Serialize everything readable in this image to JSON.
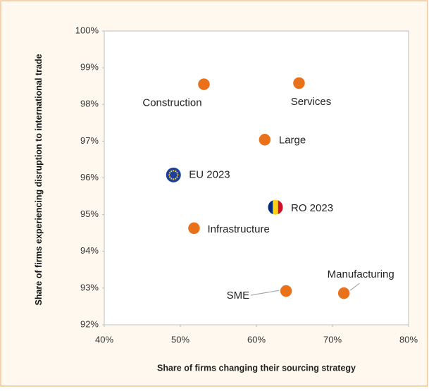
{
  "chart_data": {
    "type": "scatter",
    "xlabel": "Share of firms changing their sourcing strategy",
    "ylabel": "Share of firms experiencing disruption to international trade",
    "labels": [
      "Construction",
      "Services",
      "Large",
      "EU 2023",
      "RO 2023",
      "Infrastructure",
      "SME",
      "Manufacturing"
    ],
    "x": [
      53.1,
      65.6,
      61.1,
      49.1,
      62.5,
      51.8,
      63.9,
      71.5
    ],
    "values": [
      98.55,
      98.58,
      97.04,
      96.08,
      95.2,
      94.63,
      92.92,
      92.86
    ],
    "markers": [
      "circle",
      "circle",
      "circle",
      "eu-flag",
      "ro-flag",
      "circle",
      "circle",
      "circle"
    ],
    "color": "#e8711a",
    "xlim": [
      40,
      80
    ],
    "xticks": [
      {
        "value": 40,
        "label": "40%"
      },
      {
        "value": 50,
        "label": "50%"
      },
      {
        "value": 60,
        "label": "60%"
      },
      {
        "value": 70,
        "label": "70%"
      },
      {
        "value": 80,
        "label": "80%"
      }
    ],
    "ylim": [
      92,
      100
    ],
    "yticks": [
      {
        "value": 92,
        "label": "92%"
      },
      {
        "value": 93,
        "label": "93%"
      },
      {
        "value": 94,
        "label": "94%"
      },
      {
        "value": 95,
        "label": "95%"
      },
      {
        "value": 96,
        "label": "96%"
      },
      {
        "value": 97,
        "label": "97%"
      },
      {
        "value": 98,
        "label": "98%"
      },
      {
        "value": 99,
        "label": "99%"
      },
      {
        "value": 100,
        "label": "100%"
      }
    ]
  }
}
